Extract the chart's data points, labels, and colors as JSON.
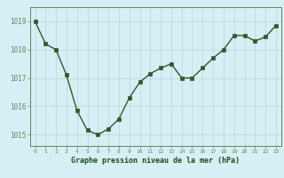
{
  "x": [
    0,
    1,
    2,
    3,
    4,
    5,
    6,
    7,
    8,
    9,
    10,
    11,
    12,
    13,
    14,
    15,
    16,
    17,
    18,
    19,
    20,
    21,
    22,
    23
  ],
  "y": [
    1019.0,
    1018.2,
    1018.0,
    1017.1,
    1015.85,
    1015.15,
    1015.0,
    1015.2,
    1015.55,
    1016.3,
    1016.85,
    1017.15,
    1017.35,
    1017.5,
    1017.0,
    1017.0,
    1017.35,
    1017.7,
    1018.0,
    1018.5,
    1018.5,
    1018.3,
    1018.45,
    1018.85
  ],
  "line_color": "#2a5c2a",
  "marker_color": "#2a5c2a",
  "bg_color": "#d6eff5",
  "grid_color": "#b8d4d8",
  "title": "Graphe pression niveau de la mer (hPa)",
  "title_color": "#1a4c1a",
  "ylim_min": 1014.6,
  "ylim_max": 1019.5,
  "yticks": [
    1015,
    1016,
    1017,
    1018,
    1019
  ],
  "border_color": "#5a8a5a"
}
